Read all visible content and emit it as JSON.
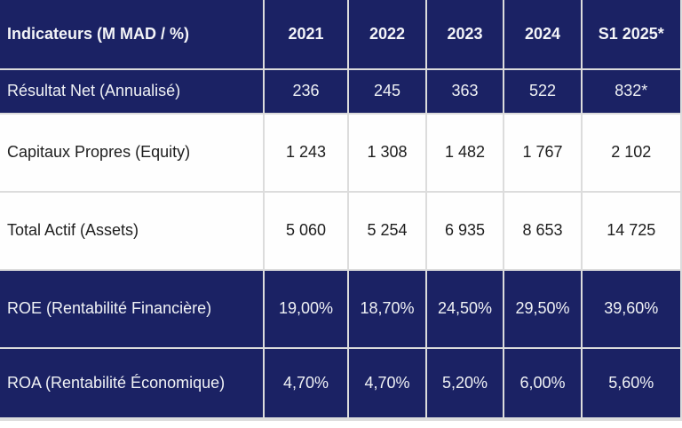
{
  "theme": {
    "navy": "#1b2264",
    "grid_line": "#dcdcdc",
    "text_on_navy": "#f0f2f5",
    "text_on_white": "#1e1e1e"
  },
  "chart_data": {
    "type": "table",
    "title": "",
    "columns": [
      "Indicateurs (M MAD / %)",
      "2021",
      "2022",
      "2023",
      "2024",
      "S1 2025*"
    ],
    "rows": [
      {
        "label": "Résultat Net (Annualisé)",
        "values": [
          "236",
          "245",
          "363",
          "522",
          "832*"
        ],
        "style": "dark"
      },
      {
        "label": "Capitaux Propres (Equity)",
        "values": [
          "1 243",
          "1 308",
          "1 482",
          "1 767",
          "2 102"
        ],
        "style": "light"
      },
      {
        "label": "Total Actif (Assets)",
        "values": [
          "5 060",
          "5 254",
          "6 935",
          "8 653",
          "14 725"
        ],
        "style": "light"
      },
      {
        "label": "ROE (Rentabilité Financière)",
        "values": [
          "19,00%",
          "18,70%",
          "24,50%",
          "29,50%",
          "39,60%"
        ],
        "style": "dark"
      },
      {
        "label": "ROA (Rentabilité Économique)",
        "values": [
          "4,70%",
          "4,70%",
          "5,20%",
          "6,00%",
          "5,60%"
        ],
        "style": "dark"
      }
    ]
  }
}
